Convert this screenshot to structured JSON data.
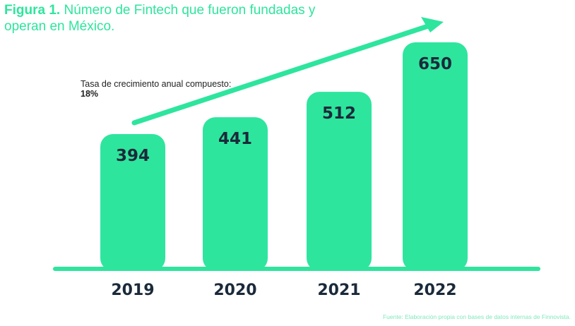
{
  "title": {
    "prefix": "Figura 1.",
    "text": "Número de Fintech que fueron fundadas y operan en México."
  },
  "annotation": {
    "label": "Tasa de crecimiento anual compuesto:",
    "value": "18%"
  },
  "source": "Fuente: Elaboración propia con bases de datos internas de Finnovista.",
  "colors": {
    "accent": "#2ee59d",
    "text_dark": "#1b2a3a"
  },
  "chart_data": {
    "type": "bar",
    "categories": [
      "2019",
      "2020",
      "2021",
      "2022"
    ],
    "values": [
      394,
      441,
      512,
      650
    ],
    "title": "Número de Fintech que fueron fundadas y operan en México.",
    "xlabel": "",
    "ylabel": "",
    "ylim": [
      0,
      700
    ],
    "grid": false,
    "legend": "none",
    "data_labels": true,
    "trend_arrow": true
  }
}
